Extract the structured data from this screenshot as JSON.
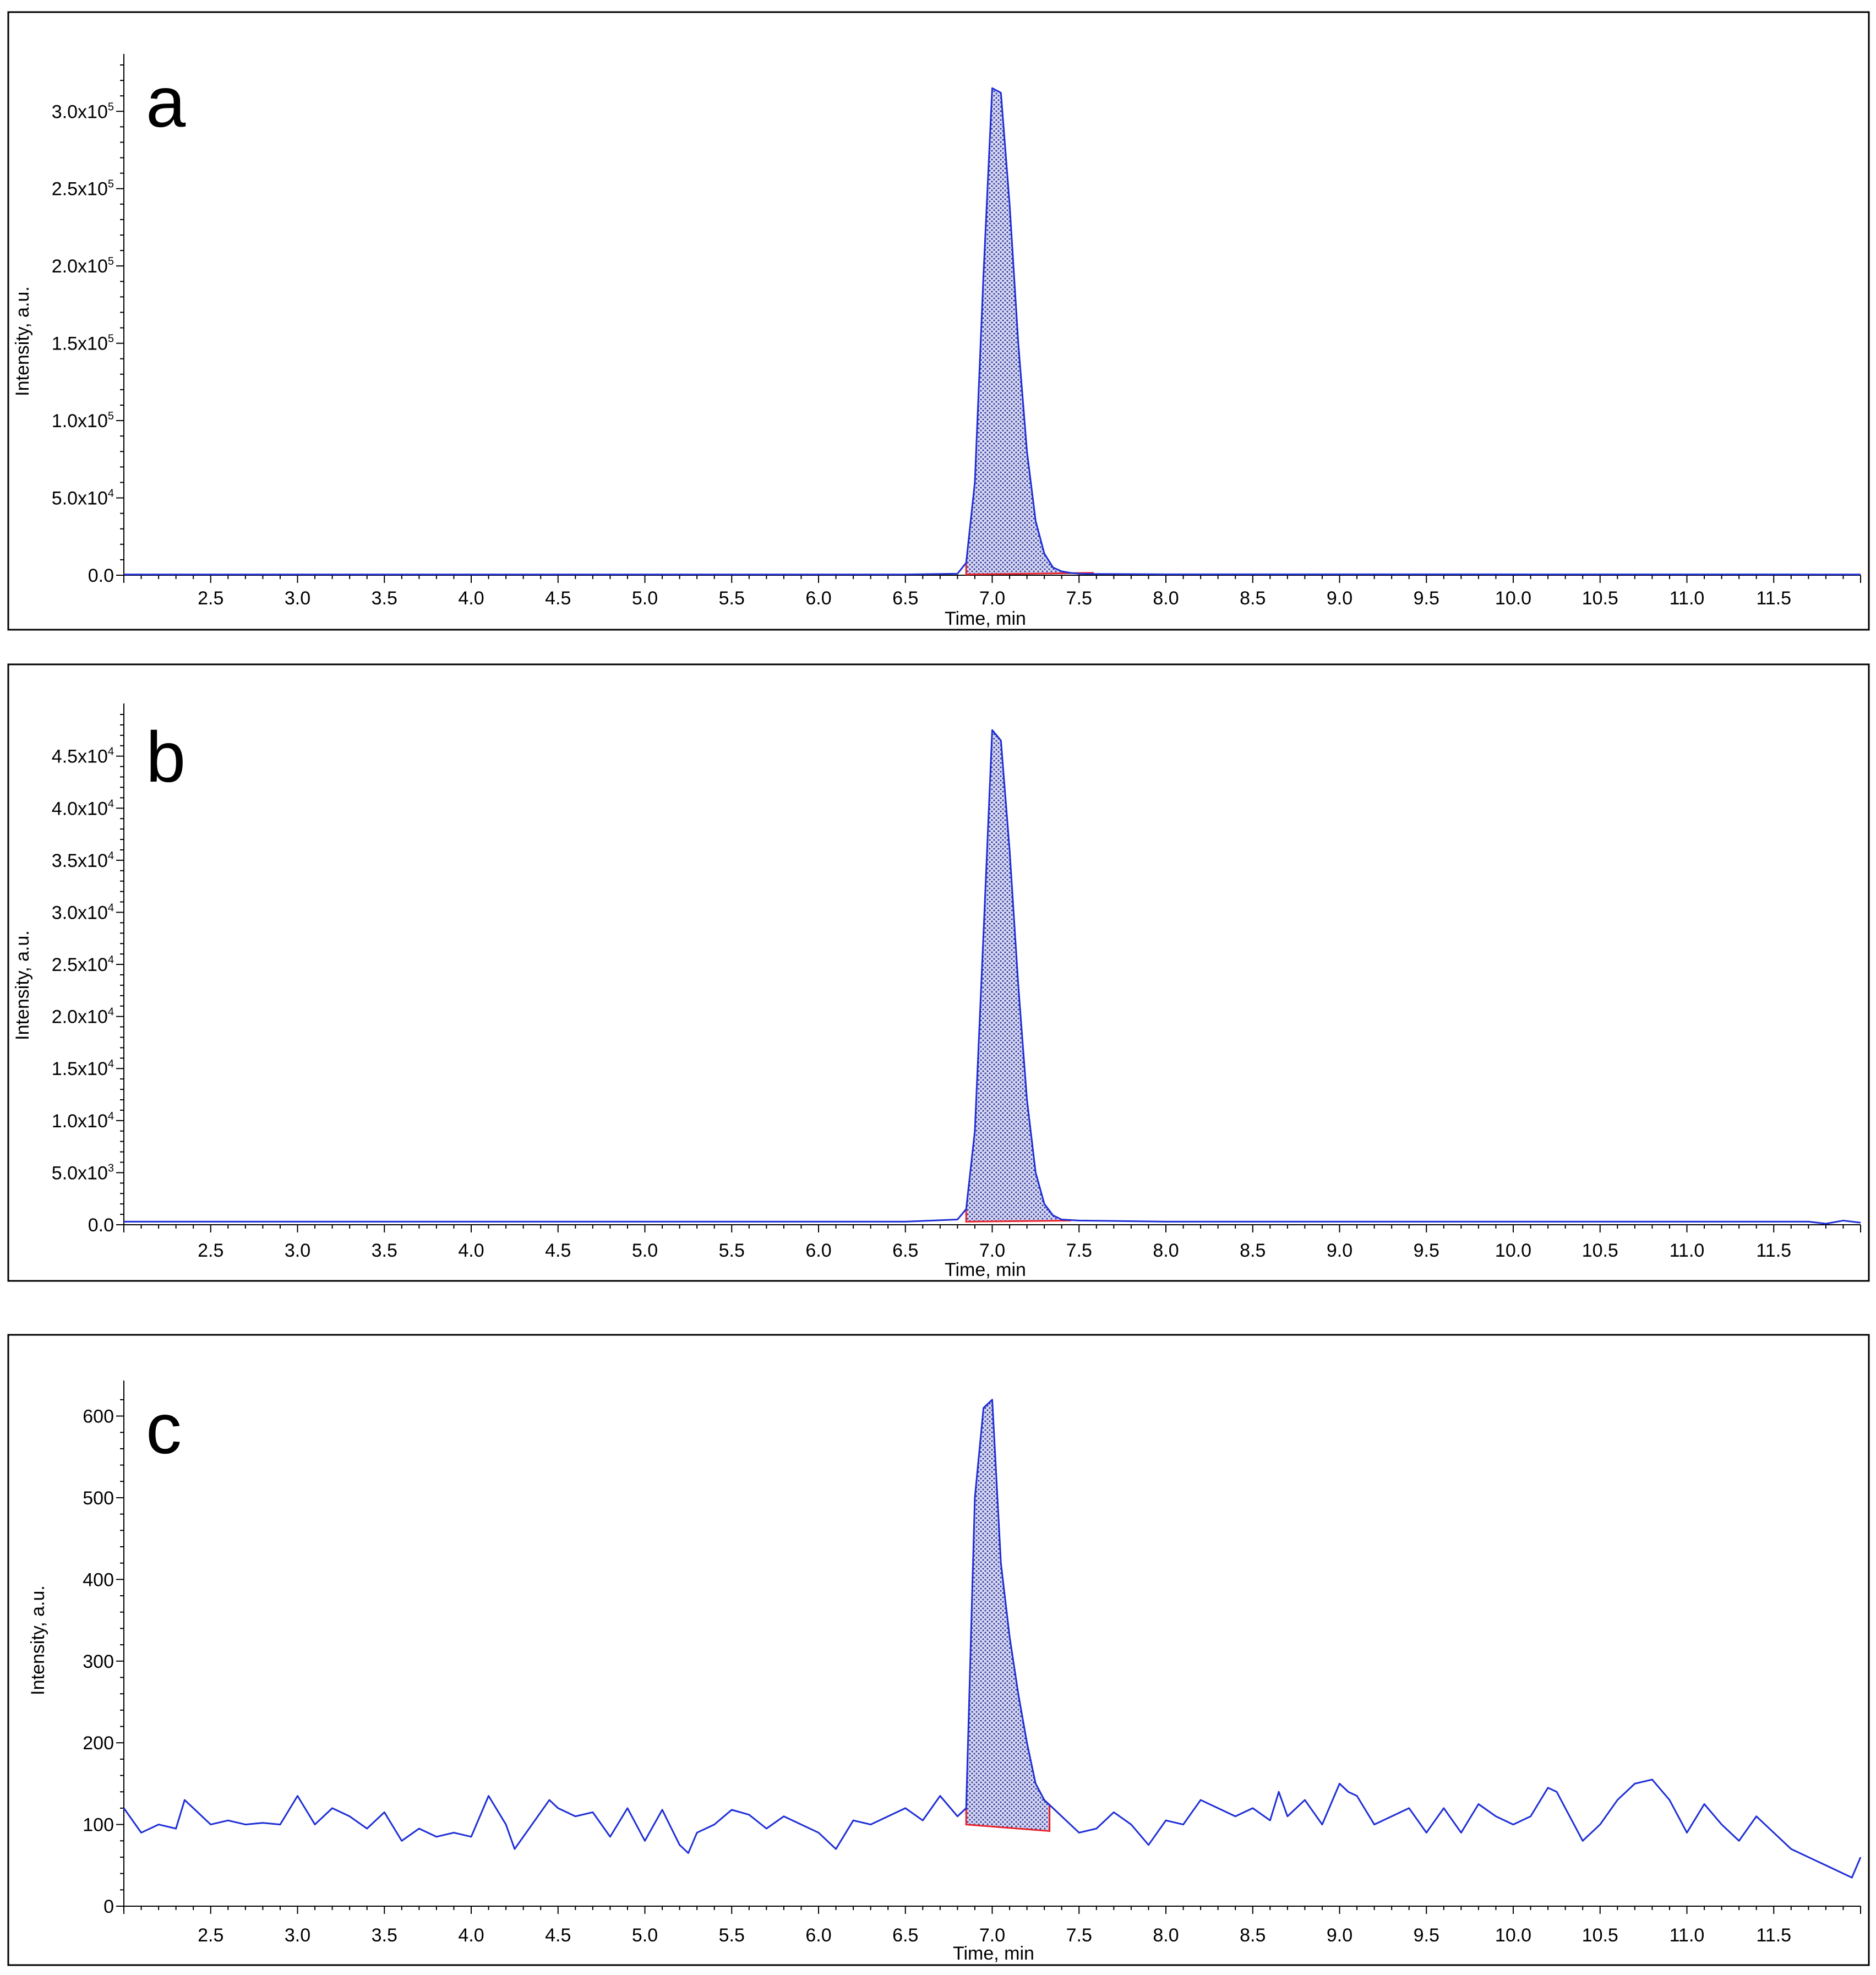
{
  "colors": {
    "trace": "#1f2fd6",
    "baseline": "#e8202a",
    "fill_dot": "#3a3aa0"
  },
  "chart_data": [
    {
      "type": "line",
      "panel_label": "a",
      "xlabel": "Time, min",
      "ylabel": "Intensity, a.u.",
      "xlim": [
        2.0,
        12.0
      ],
      "ylim": [
        0,
        330000
      ],
      "x_ticks": [
        "2.5",
        "3.0",
        "3.5",
        "4.0",
        "4.5",
        "5.0",
        "5.5",
        "6.0",
        "6.5",
        "7.0",
        "7.5",
        "8.0",
        "8.5",
        "9.0",
        "9.5",
        "10.0",
        "10.5",
        "11.0",
        "11.5"
      ],
      "y_ticks": [
        {
          "value": 0,
          "base": "0.0",
          "exp": ""
        },
        {
          "value": 50000,
          "base": "5.0x10",
          "exp": "4"
        },
        {
          "value": 100000,
          "base": "1.0x10",
          "exp": "5"
        },
        {
          "value": 150000,
          "base": "1.5x10",
          "exp": "5"
        },
        {
          "value": 200000,
          "base": "2.0x10",
          "exp": "5"
        },
        {
          "value": 250000,
          "base": "2.5x10",
          "exp": "5"
        },
        {
          "value": 300000,
          "base": "3.0x10",
          "exp": "5"
        }
      ],
      "series": [
        {
          "x": [
            2.0,
            6.5,
            6.8,
            6.85,
            6.9,
            6.95,
            7.0,
            7.05,
            7.1,
            7.15,
            7.2,
            7.25,
            7.3,
            7.35,
            7.4,
            7.45,
            7.5,
            7.6,
            8.0,
            12.0
          ],
          "y": [
            500,
            500,
            1000,
            8000,
            60000,
            195000,
            315000,
            312000,
            240000,
            150000,
            80000,
            35000,
            14000,
            5000,
            2500,
            1500,
            1000,
            800,
            600,
            500
          ]
        }
      ],
      "peak_range": [
        6.85,
        7.58
      ],
      "baseline": {
        "x": [
          6.85,
          7.58
        ],
        "y": [
          500,
          1500
        ]
      }
    },
    {
      "type": "line",
      "panel_label": "b",
      "xlabel": "Time, min",
      "ylabel": "Intensity, a.u.",
      "xlim": [
        2.0,
        12.0
      ],
      "ylim": [
        0,
        49000
      ],
      "x_ticks": [
        "2.5",
        "3.0",
        "3.5",
        "4.0",
        "4.5",
        "5.0",
        "5.5",
        "6.0",
        "6.5",
        "7.0",
        "7.5",
        "8.0",
        "8.5",
        "9.0",
        "9.5",
        "10.0",
        "10.5",
        "11.0",
        "11.5"
      ],
      "y_ticks": [
        {
          "value": 0,
          "base": "0.0",
          "exp": ""
        },
        {
          "value": 5000,
          "base": "5.0x10",
          "exp": "3"
        },
        {
          "value": 10000,
          "base": "1.0x10",
          "exp": "4"
        },
        {
          "value": 15000,
          "base": "1.5x10",
          "exp": "4"
        },
        {
          "value": 20000,
          "base": "2.0x10",
          "exp": "4"
        },
        {
          "value": 25000,
          "base": "2.5x10",
          "exp": "4"
        },
        {
          "value": 30000,
          "base": "3.0x10",
          "exp": "4"
        },
        {
          "value": 35000,
          "base": "3.5x10",
          "exp": "4"
        },
        {
          "value": 40000,
          "base": "4.0x10",
          "exp": "4"
        },
        {
          "value": 45000,
          "base": "4.5x10",
          "exp": "4"
        }
      ],
      "series": [
        {
          "x": [
            2.0,
            6.5,
            6.8,
            6.85,
            6.9,
            6.95,
            7.0,
            7.05,
            7.1,
            7.15,
            7.2,
            7.25,
            7.3,
            7.35,
            7.4,
            7.5,
            8.0,
            11.7,
            11.8,
            11.9,
            12.0
          ],
          "y": [
            300,
            300,
            500,
            1500,
            9000,
            28000,
            47500,
            46500,
            36000,
            23000,
            12000,
            5000,
            2000,
            900,
            500,
            400,
            300,
            300,
            100,
            400,
            200
          ]
        }
      ],
      "peak_range": [
        6.85,
        7.45
      ],
      "baseline": {
        "x": [
          6.85,
          7.45
        ],
        "y": [
          300,
          400
        ]
      }
    },
    {
      "type": "line",
      "panel_label": "c",
      "xlabel": "Time, min",
      "ylabel": "Intensity, a.u.",
      "xlim": [
        2.0,
        12.0
      ],
      "ylim": [
        0,
        630
      ],
      "x_ticks": [
        "2.5",
        "3.0",
        "3.5",
        "4.0",
        "4.5",
        "5.0",
        "5.5",
        "6.0",
        "6.5",
        "7.0",
        "7.5",
        "8.0",
        "8.5",
        "9.0",
        "9.5",
        "10.0",
        "10.5",
        "11.0",
        "11.5"
      ],
      "y_ticks": [
        {
          "value": 0,
          "base": "0",
          "exp": ""
        },
        {
          "value": 100,
          "base": "100",
          "exp": ""
        },
        {
          "value": 200,
          "base": "200",
          "exp": ""
        },
        {
          "value": 300,
          "base": "300",
          "exp": ""
        },
        {
          "value": 400,
          "base": "400",
          "exp": ""
        },
        {
          "value": 500,
          "base": "500",
          "exp": ""
        },
        {
          "value": 600,
          "base": "600",
          "exp": ""
        }
      ],
      "series": [
        {
          "x": [
            2.0,
            2.1,
            2.2,
            2.3,
            2.35,
            2.4,
            2.5,
            2.6,
            2.7,
            2.8,
            2.9,
            3.0,
            3.1,
            3.2,
            3.3,
            3.4,
            3.5,
            3.6,
            3.7,
            3.8,
            3.9,
            4.0,
            4.1,
            4.2,
            4.25,
            4.35,
            4.45,
            4.5,
            4.6,
            4.7,
            4.8,
            4.9,
            5.0,
            5.1,
            5.2,
            5.25,
            5.3,
            5.4,
            5.5,
            5.6,
            5.7,
            5.8,
            5.9,
            6.0,
            6.1,
            6.2,
            6.3,
            6.4,
            6.5,
            6.6,
            6.7,
            6.8,
            6.85,
            6.9,
            6.95,
            7.0,
            7.05,
            7.1,
            7.15,
            7.2,
            7.25,
            7.3,
            7.35,
            7.4,
            7.5,
            7.6,
            7.7,
            7.8,
            7.9,
            8.0,
            8.1,
            8.2,
            8.3,
            8.4,
            8.5,
            8.6,
            8.65,
            8.7,
            8.8,
            8.9,
            9.0,
            9.05,
            9.1,
            9.2,
            9.3,
            9.4,
            9.5,
            9.6,
            9.7,
            9.8,
            9.9,
            10.0,
            10.1,
            10.2,
            10.25,
            10.3,
            10.4,
            10.5,
            10.6,
            10.7,
            10.8,
            10.9,
            11.0,
            11.1,
            11.2,
            11.3,
            11.4,
            11.5,
            11.6,
            11.7,
            11.8,
            11.9,
            11.95,
            12.0
          ],
          "y": [
            120,
            90,
            100,
            95,
            130,
            120,
            100,
            105,
            100,
            102,
            100,
            135,
            100,
            120,
            110,
            95,
            115,
            80,
            95,
            85,
            90,
            85,
            135,
            100,
            70,
            100,
            130,
            120,
            110,
            115,
            85,
            120,
            80,
            118,
            75,
            65,
            90,
            100,
            118,
            112,
            95,
            110,
            100,
            90,
            70,
            105,
            100,
            110,
            120,
            105,
            135,
            110,
            120,
            500,
            610,
            620,
            420,
            330,
            260,
            200,
            150,
            130,
            120,
            110,
            90,
            95,
            115,
            100,
            75,
            105,
            100,
            130,
            120,
            110,
            120,
            105,
            140,
            110,
            130,
            100,
            150,
            140,
            135,
            100,
            110,
            120,
            90,
            120,
            90,
            125,
            110,
            100,
            110,
            145,
            140,
            120,
            80,
            100,
            130,
            150,
            155,
            130,
            90,
            125,
            100,
            80,
            110,
            90,
            70,
            60,
            50,
            40,
            35,
            60
          ]
        }
      ],
      "peak_range": [
        6.85,
        7.33
      ],
      "baseline": {
        "x": [
          6.85,
          7.33
        ],
        "y": [
          100,
          92
        ]
      }
    }
  ]
}
